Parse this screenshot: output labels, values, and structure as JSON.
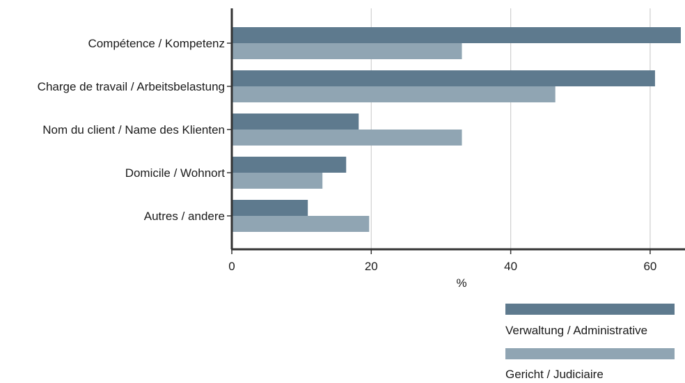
{
  "chart_data": {
    "type": "bar",
    "orientation": "horizontal",
    "categories": [
      "Compétence / Kompetenz",
      "Charge de travail / Arbeitsbelastung",
      "Nom du client / Name des Klienten",
      "Domicile / Wohnort",
      "Autres / andere"
    ],
    "series": [
      {
        "name": "Verwaltung / Administrative",
        "color": "#5e7a8e",
        "values": [
          64.4,
          60.7,
          18.2,
          16.4,
          10.9
        ]
      },
      {
        "name": "Gericht / Judiciaire",
        "color": "#90a5b3",
        "values": [
          33.0,
          46.4,
          33.0,
          13.0,
          19.7
        ]
      }
    ],
    "xlabel": "%",
    "ylabel": "",
    "xlim": [
      0,
      65
    ],
    "xticks": [
      0,
      20,
      40,
      60
    ],
    "grid": true,
    "legend_position": "bottom-right"
  }
}
